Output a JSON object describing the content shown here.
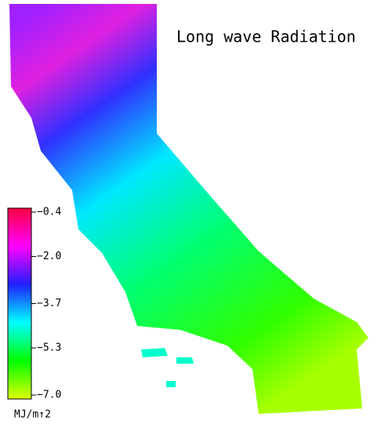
{
  "title": "Long wave Radiation",
  "colorbar": {
    "ticks": [
      {
        "value": -0.4,
        "label": "−0.4"
      },
      {
        "value": -2.0,
        "label": "−2.0"
      },
      {
        "value": -3.7,
        "label": "−3.7"
      },
      {
        "value": -5.3,
        "label": "−5.3"
      },
      {
        "value": -7.0,
        "label": "−7.0"
      }
    ],
    "colors": [
      "#ff0040",
      "#ff00ff",
      "#2020ff",
      "#00ffff",
      "#00ff00",
      "#ddff00"
    ],
    "unit": "MJ/m↑2"
  }
}
